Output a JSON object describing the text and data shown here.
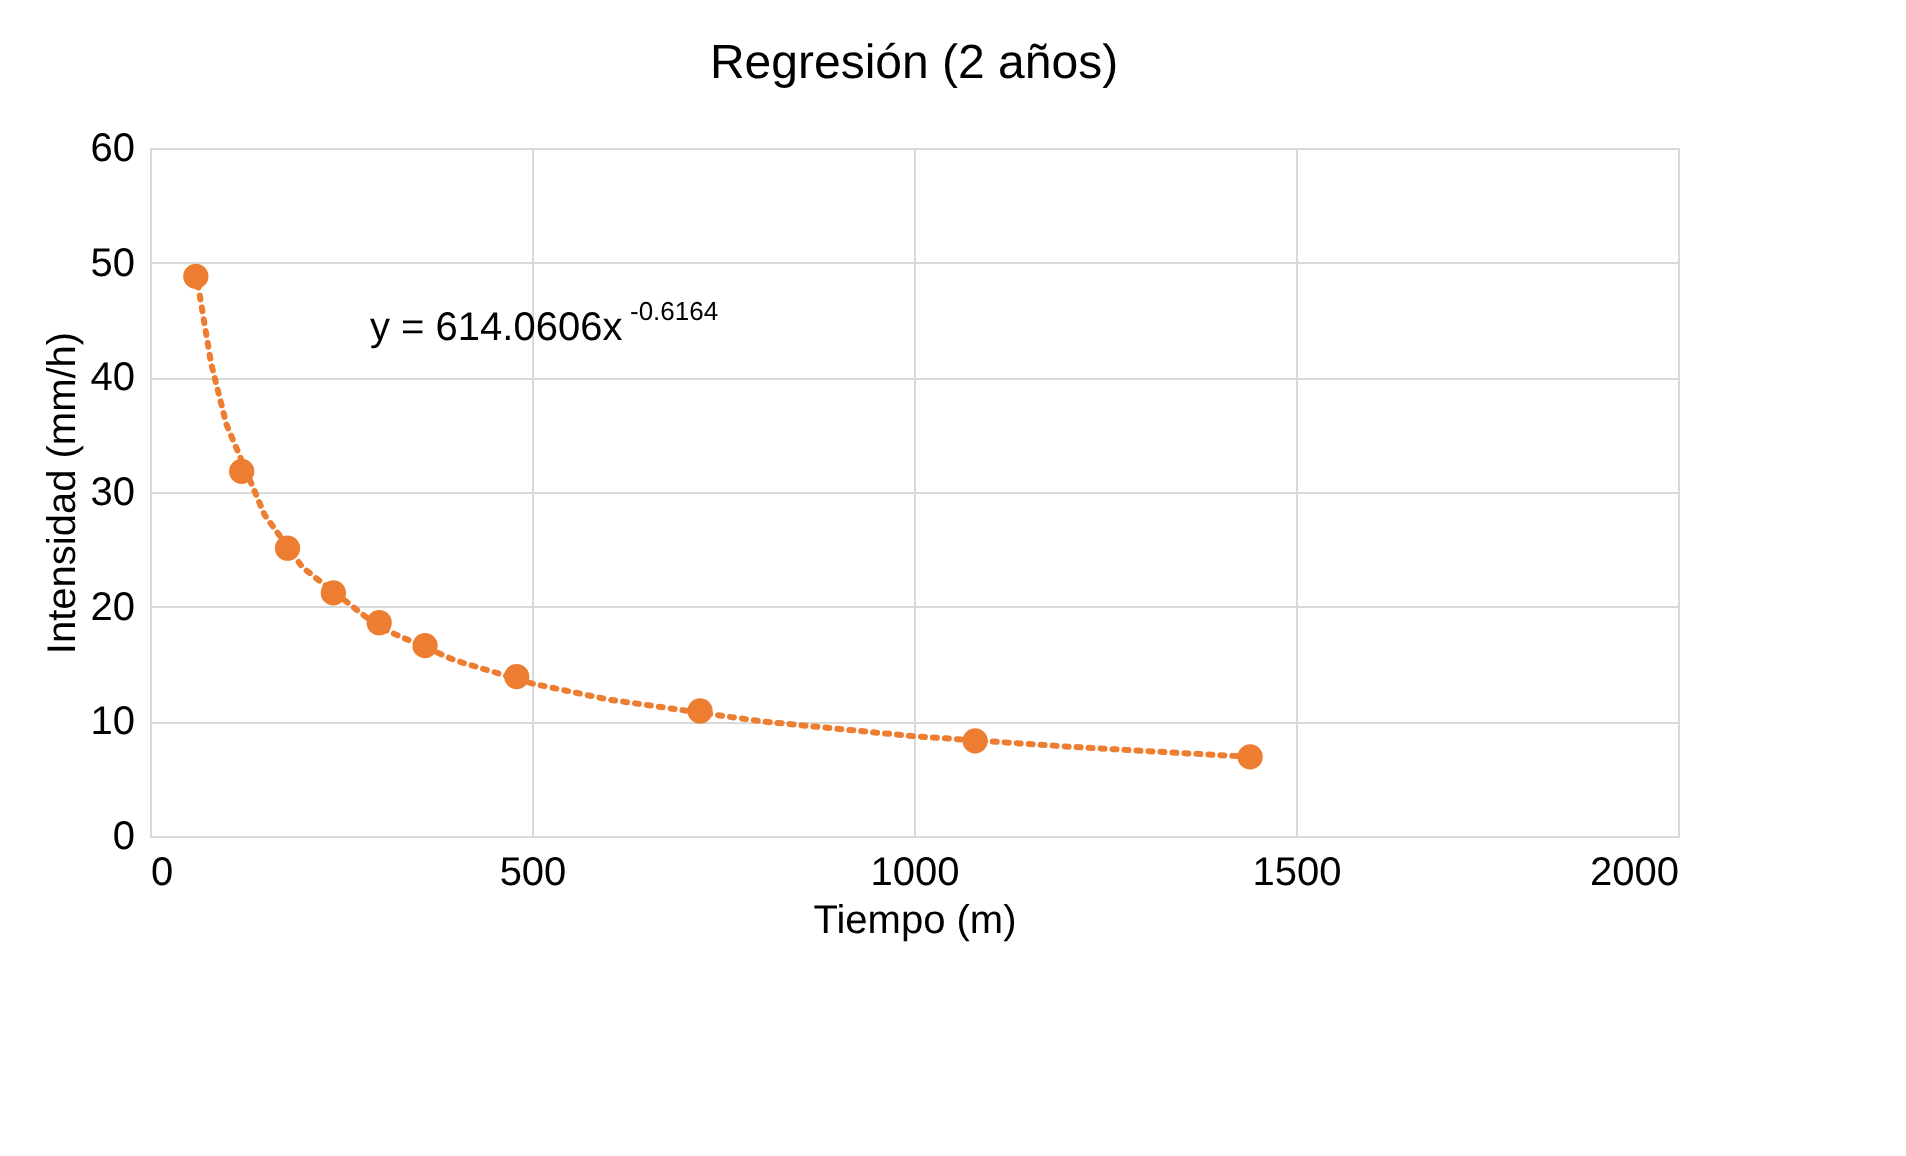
{
  "chart_data": {
    "type": "scatter",
    "title": "Regresión  (2 años)",
    "xlabel": "Tiempo (m)",
    "ylabel": "Intensidad (mm/h)",
    "xlim": [
      0,
      2000
    ],
    "xticks": [
      0,
      500,
      1000,
      1500,
      2000
    ],
    "ylim": [
      0,
      60
    ],
    "yticks": [
      0,
      10,
      20,
      30,
      40,
      50,
      60
    ],
    "grid": true,
    "annotations": [
      "y = 614.0606x$^{-0.6164}$"
    ],
    "series": [
      {
        "type": "line",
        "line_style": "dotted",
        "color": "#ed7d31",
        "x": [
          60,
          80,
          100,
          150,
          200,
          300,
          400,
          500,
          600,
          800,
          1000,
          1200,
          1440
        ],
        "values": [
          49.2,
          41.2,
          35.9,
          28.0,
          23.4,
          18.2,
          15.3,
          13.3,
          11.9,
          10.0,
          8.7,
          7.8,
          6.9
        ]
      },
      {
        "color": "#ed7d31",
        "marker": "circle",
        "x": [
          60,
          120,
          180,
          240,
          300,
          360,
          480,
          720,
          1080,
          1440
        ],
        "values": [
          48.8,
          31.8,
          25.1,
          21.2,
          18.6,
          16.6,
          13.9,
          10.9,
          8.3,
          6.9
        ]
      }
    ]
  }
}
